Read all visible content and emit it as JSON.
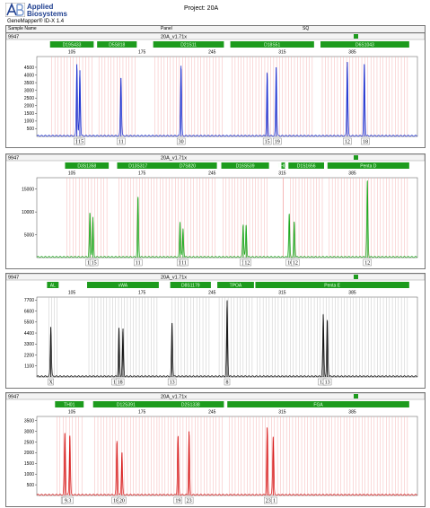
{
  "header": {
    "logo_line1": "Applied",
    "logo_line2": "Biosystems",
    "app_title": "GeneMapper® ID-X 1.4",
    "project": "Project: 20A",
    "col_sample_name": "Sample Name",
    "col_panel": "Panel",
    "col_sq": "SQ"
  },
  "colors": {
    "blue": "#1a2fd0",
    "green": "#1fa81f",
    "black": "#111111",
    "red": "#d81c1c",
    "bin": "#f4a8a8",
    "marker": "#1d9b1d"
  },
  "chart_data": [
    {
      "type": "line",
      "title": "",
      "sample": "9947",
      "panel": "20A_v1.71x",
      "dye": "blue",
      "x_ticks": [
        105,
        175,
        245,
        315,
        385
      ],
      "xlim": [
        70,
        450
      ],
      "ylim": [
        0,
        5200
      ],
      "y_ticks": [
        500,
        1000,
        1500,
        2000,
        2500,
        3000,
        3500,
        4000,
        4500
      ],
      "markers": [
        {
          "name": "D19S433",
          "start": 85,
          "end": 125
        },
        {
          "name": "D5S818",
          "start": 132,
          "end": 168
        },
        {
          "name": "D21S11",
          "start": 188,
          "end": 255
        },
        {
          "name": "D18S51",
          "start": 265,
          "end": 345
        },
        {
          "name": "D6S1043",
          "start": 355,
          "end": 440
        }
      ],
      "peaks": [
        {
          "x": 110,
          "y": 4700
        },
        {
          "x": 113,
          "y": 4300
        },
        {
          "x": 154,
          "y": 3800
        },
        {
          "x": 214,
          "y": 4600
        },
        {
          "x": 300,
          "y": 4100
        },
        {
          "x": 309,
          "y": 4500
        },
        {
          "x": 380,
          "y": 4850
        },
        {
          "x": 397,
          "y": 4700
        }
      ],
      "alleles": [
        {
          "x": 111,
          "label": "14"
        },
        {
          "x": 114,
          "label": "15"
        },
        {
          "x": 154,
          "label": "11"
        },
        {
          "x": 214,
          "label": "30"
        },
        {
          "x": 300,
          "label": "15"
        },
        {
          "x": 310,
          "label": "19"
        },
        {
          "x": 380,
          "label": "12"
        },
        {
          "x": 398,
          "label": "18"
        }
      ]
    },
    {
      "type": "line",
      "title": "",
      "sample": "9947",
      "panel": "20A_v1.71x",
      "dye": "green",
      "x_ticks": [
        105,
        175,
        245,
        315,
        385
      ],
      "xlim": [
        70,
        450
      ],
      "ylim": [
        0,
        17500
      ],
      "y_ticks": [
        5000,
        10000,
        15000
      ],
      "markers": [
        {
          "name": "D3S1358",
          "start": 100,
          "end": 140
        },
        {
          "name": "D13S317",
          "start": 152,
          "end": 190
        },
        {
          "name": "D7S820",
          "start": 193,
          "end": 248
        },
        {
          "name": "D16S539",
          "start": 256,
          "end": 300
        },
        {
          "name": "TH01",
          "start": 316,
          "end": 316
        },
        {
          "name": "D1S1656",
          "start": 323,
          "end": 355
        },
        {
          "name": "Penta D",
          "start": 362,
          "end": 440
        }
      ],
      "peaks": [
        {
          "x": 123,
          "y": 9800
        },
        {
          "x": 126,
          "y": 8700
        },
        {
          "x": 171,
          "y": 13300
        },
        {
          "x": 213,
          "y": 7800
        },
        {
          "x": 216,
          "y": 6200
        },
        {
          "x": 276,
          "y": 7200
        },
        {
          "x": 279,
          "y": 7000
        },
        {
          "x": 322,
          "y": 9400
        },
        {
          "x": 327,
          "y": 7800
        },
        {
          "x": 400,
          "y": 16700
        }
      ],
      "alleles": [
        {
          "x": 123,
          "label": "14"
        },
        {
          "x": 127,
          "label": "15"
        },
        {
          "x": 171,
          "label": "11"
        },
        {
          "x": 214,
          "label": "10"
        },
        {
          "x": 217,
          "label": "11"
        },
        {
          "x": 277,
          "label": "11"
        },
        {
          "x": 280,
          "label": "12"
        },
        {
          "x": 323,
          "label": "10"
        },
        {
          "x": 328,
          "label": "12"
        },
        {
          "x": 400,
          "label": "12"
        }
      ]
    },
    {
      "type": "line",
      "title": "",
      "sample": "9947",
      "panel": "20A_v1.71x",
      "dye": "black",
      "x_ticks": [
        105,
        175,
        245,
        315,
        385
      ],
      "xlim": [
        70,
        450
      ],
      "ylim": [
        0,
        8000
      ],
      "y_ticks": [
        1100,
        2200,
        3300,
        4400,
        5500,
        6600,
        7700
      ],
      "markers": [
        {
          "name": "AL",
          "start": 82,
          "end": 90
        },
        {
          "name": "vWA",
          "start": 122,
          "end": 190
        },
        {
          "name": "D8S1179",
          "start": 205,
          "end": 242
        },
        {
          "name": "TPOA",
          "start": 252,
          "end": 285
        },
        {
          "name": "Penta E",
          "start": 290,
          "end": 440
        }
      ],
      "peaks": [
        {
          "x": 84,
          "y": 5000
        },
        {
          "x": 152,
          "y": 4900
        },
        {
          "x": 156,
          "y": 4800
        },
        {
          "x": 205,
          "y": 5400
        },
        {
          "x": 260,
          "y": 7600
        },
        {
          "x": 356,
          "y": 6200
        },
        {
          "x": 360,
          "y": 5700
        }
      ],
      "alleles": [
        {
          "x": 84,
          "label": "X"
        },
        {
          "x": 149,
          "label": "17"
        },
        {
          "x": 153,
          "label": "18"
        },
        {
          "x": 205,
          "label": "13"
        },
        {
          "x": 260,
          "label": "8"
        },
        {
          "x": 355,
          "label": "12"
        },
        {
          "x": 360,
          "label": "13"
        }
      ]
    },
    {
      "type": "line",
      "title": "",
      "sample": "9947",
      "panel": "20A_v1.71x",
      "dye": "red",
      "x_ticks": [
        105,
        175,
        245,
        315,
        385
      ],
      "xlim": [
        70,
        450
      ],
      "ylim": [
        0,
        3700
      ],
      "y_ticks": [
        500,
        1000,
        1500,
        2000,
        2500,
        3000,
        3500
      ],
      "markers": [
        {
          "name": "TH01",
          "start": 90,
          "end": 115
        },
        {
          "name": "D12S391",
          "start": 128,
          "end": 190
        },
        {
          "name": "D2S1338",
          "start": 192,
          "end": 255
        },
        {
          "name": "FGA",
          "start": 262,
          "end": 440
        }
      ],
      "peaks": [
        {
          "x": 98,
          "y": 2900
        },
        {
          "x": 103,
          "y": 2800
        },
        {
          "x": 150,
          "y": 2550
        },
        {
          "x": 155,
          "y": 2000
        },
        {
          "x": 211,
          "y": 2750
        },
        {
          "x": 222,
          "y": 3000
        },
        {
          "x": 300,
          "y": 3150
        },
        {
          "x": 306,
          "y": 2750
        }
      ],
      "alleles": [
        {
          "x": 97,
          "label": "8"
        },
        {
          "x": 101,
          "label": "9.3"
        },
        {
          "x": 149,
          "label": "18"
        },
        {
          "x": 155,
          "label": "20"
        },
        {
          "x": 211,
          "label": "19"
        },
        {
          "x": 222,
          "label": "23"
        },
        {
          "x": 301,
          "label": "23"
        },
        {
          "x": 307,
          "label": "1"
        }
      ]
    }
  ]
}
